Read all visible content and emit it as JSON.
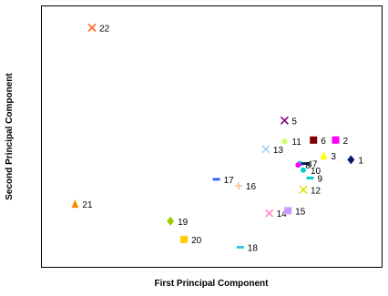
{
  "chart_data": {
    "type": "scatter",
    "title": "",
    "xlabel": "First Principal Component",
    "ylabel": "Second Principal Component",
    "xlim": [
      0,
      100
    ],
    "ylim": [
      0,
      100
    ],
    "axis_ticks": "none",
    "grid": false,
    "legend": "none",
    "points": [
      {
        "label": "1",
        "x": 91,
        "y": 41,
        "marker": "diamond",
        "color": "#0a1a66"
      },
      {
        "label": "2",
        "x": 86.5,
        "y": 48.5,
        "marker": "square",
        "color": "#ff00ff"
      },
      {
        "label": "3",
        "x": 83,
        "y": 42.5,
        "marker": "triangle",
        "color": "#ffff00"
      },
      {
        "label": "4",
        "x": 76,
        "y": 39.5,
        "marker": "circle",
        "color": "#00d0d0"
      },
      {
        "label": "5",
        "x": 71.5,
        "y": 56,
        "marker": "x",
        "color": "#800080"
      },
      {
        "label": "6",
        "x": 80,
        "y": 48.5,
        "marker": "square",
        "color": "#800000"
      },
      {
        "label": "7",
        "x": 77.5,
        "y": 39.5,
        "marker": "dash",
        "color": "#0a1a66"
      },
      {
        "label": "8",
        "x": 75.5,
        "y": 39,
        "marker": "circle",
        "color": "#ff00ff"
      },
      {
        "label": "9",
        "x": 79,
        "y": 34,
        "marker": "dash",
        "color": "#00d0d0"
      },
      {
        "label": "10",
        "x": 77,
        "y": 37,
        "marker": "circle",
        "color": "#00d0d0"
      },
      {
        "label": "11",
        "x": 71.5,
        "y": 48,
        "marker": "circle",
        "color": "#ccff66"
      },
      {
        "label": "12",
        "x": 77,
        "y": 29.5,
        "marker": "x",
        "color": "#e0e000"
      },
      {
        "label": "13",
        "x": 66,
        "y": 45,
        "marker": "x",
        "color": "#a0d0ff"
      },
      {
        "label": "14",
        "x": 67,
        "y": 20.5,
        "marker": "x",
        "color": "#ff88cc"
      },
      {
        "label": "15",
        "x": 72.5,
        "y": 21.5,
        "marker": "square",
        "color": "#cc99ff"
      },
      {
        "label": "16",
        "x": 58,
        "y": 31,
        "marker": "plus",
        "color": "#ffbb88"
      },
      {
        "label": "17",
        "x": 51.5,
        "y": 33.5,
        "marker": "dash",
        "color": "#3366ff"
      },
      {
        "label": "18",
        "x": 58.5,
        "y": 7.5,
        "marker": "dash",
        "color": "#33ccdd"
      },
      {
        "label": "19",
        "x": 38,
        "y": 17.5,
        "marker": "diamond",
        "color": "#99cc00"
      },
      {
        "label": "20",
        "x": 42,
        "y": 10.5,
        "marker": "square",
        "color": "#ffcc00"
      },
      {
        "label": "21",
        "x": 10,
        "y": 24,
        "marker": "triangle",
        "color": "#ff8800"
      },
      {
        "label": "22",
        "x": 15,
        "y": 91.5,
        "marker": "x",
        "color": "#ff6622"
      }
    ]
  }
}
